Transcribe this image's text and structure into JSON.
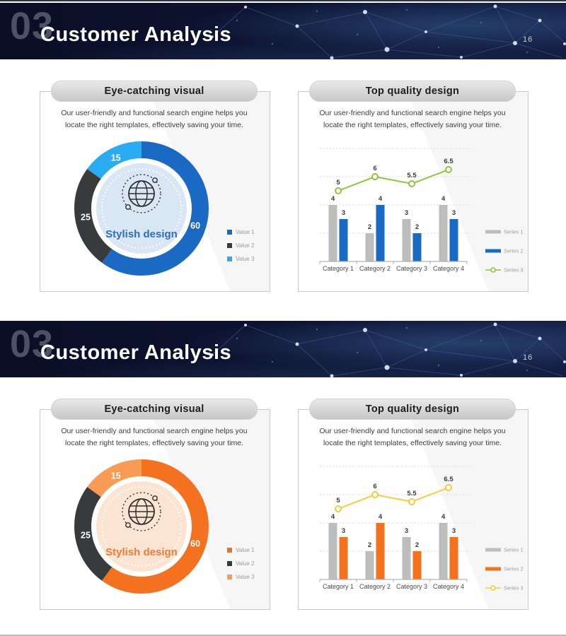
{
  "page": {
    "number": "16"
  },
  "slides": [
    {
      "theme": "blue",
      "header": {
        "index": "03",
        "title": "Customer Analysis",
        "page_number": "16"
      },
      "left_panel": {
        "title": "Eye-catching visual",
        "body": "Our user-friendly and functional search engine helps you\nlocate the right templates, effectively saving your time."
      },
      "right_panel": {
        "title": "Top quality design",
        "body": "Our user-friendly and functional search engine helps you\nlocate the right templates, effectively saving your time."
      }
    },
    {
      "theme": "orange",
      "header": {
        "index": "03",
        "title": "Customer Analysis",
        "page_number": "16"
      },
      "left_panel": {
        "title": "Eye-catching visual",
        "body": "Our user-friendly and functional search engine helps you\nlocate the right templates, effectively saving your time."
      },
      "right_panel": {
        "title": "Top quality design",
        "body": "Our user-friendly and functional search engine helps you\nlocate the right templates, effectively saving your time."
      }
    }
  ],
  "chart_data": [
    {
      "type": "pie",
      "variant": "donut",
      "slide": 1,
      "panel_title": "Eye-catching visual",
      "labels": [
        "Value 1",
        "Value 2",
        "Value 3"
      ],
      "values": [
        60,
        25,
        15
      ],
      "colors": [
        "#1a69c2",
        "#383a3c",
        "#2aacf2"
      ],
      "slice_label_color": "#ffffff",
      "center_label": "Stylish design",
      "center_fill": "#d9e6f4",
      "accent_text": "#2a6fc0",
      "legend_position": "right"
    },
    {
      "type": "bar",
      "variant": "grouped-bars-with-line",
      "slide": 1,
      "panel_title": "Top quality design",
      "categories": [
        "Category 1",
        "Category 2",
        "Category 3",
        "Category 4"
      ],
      "series": [
        {
          "name": "Series 1",
          "type": "bar",
          "color": "#bdbdbd",
          "values": [
            4,
            2,
            3,
            4
          ]
        },
        {
          "name": "Series 2",
          "type": "bar",
          "color": "#1a69c2",
          "values": [
            3,
            4,
            2,
            3
          ]
        },
        {
          "name": "Series 3",
          "type": "line",
          "color": "#8cc63e",
          "values": [
            5,
            6,
            5.5,
            6.5
          ]
        }
      ],
      "ylim": [
        0,
        8
      ],
      "gridline_step": 2,
      "grid": true,
      "data_labels": true,
      "legend_position": "right"
    },
    {
      "type": "pie",
      "variant": "donut",
      "slide": 2,
      "panel_title": "Eye-catching visual",
      "labels": [
        "Value 1",
        "Value 2",
        "Value 3"
      ],
      "values": [
        60,
        25,
        15
      ],
      "colors": [
        "#f3711f",
        "#383a3c",
        "#f79b55"
      ],
      "slice_label_color": "#ffffff",
      "center_label": "Stylish design",
      "center_fill": "#fce4d2",
      "accent_text": "#ef7b35",
      "legend_position": "right"
    },
    {
      "type": "bar",
      "variant": "grouped-bars-with-line",
      "slide": 2,
      "panel_title": "Top quality design",
      "categories": [
        "Category 1",
        "Category 2",
        "Category 3",
        "Category 4"
      ],
      "series": [
        {
          "name": "Series 1",
          "type": "bar",
          "color": "#bdbdbd",
          "values": [
            4,
            2,
            3,
            4
          ]
        },
        {
          "name": "Series 2",
          "type": "bar",
          "color": "#f3711f",
          "values": [
            3,
            4,
            2,
            3
          ]
        },
        {
          "name": "Series 3",
          "type": "line",
          "color": "#f2cd3a",
          "values": [
            5,
            6,
            5.5,
            6.5
          ]
        }
      ],
      "ylim": [
        0,
        8
      ],
      "gridline_step": 2,
      "grid": true,
      "data_labels": true,
      "legend_position": "right"
    }
  ]
}
